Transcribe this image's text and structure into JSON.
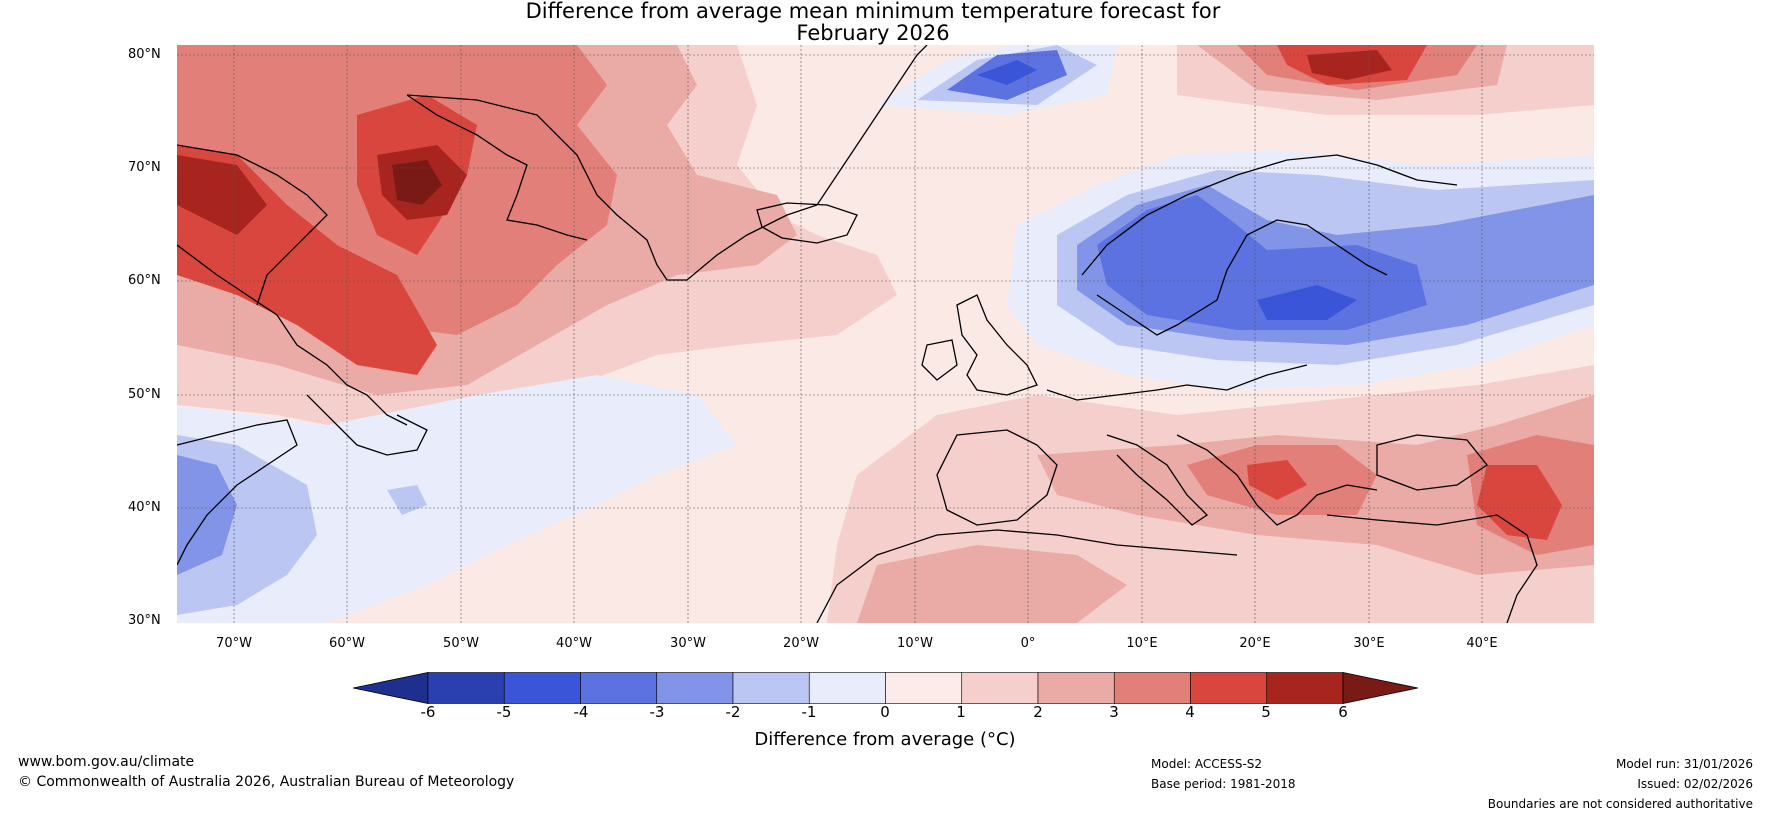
{
  "title": {
    "line1": "Difference from average mean minimum temperature forecast for",
    "line2": "February 2026"
  },
  "map": {
    "latitude_labels": [
      "80°N",
      "70°N",
      "60°N",
      "50°N",
      "40°N",
      "30°N"
    ],
    "longitude_labels": [
      "70°W",
      "60°W",
      "50°W",
      "40°W",
      "30°W",
      "20°W",
      "10°W",
      "0°",
      "10°E",
      "20°E",
      "30°E",
      "40°E"
    ],
    "region": "North Atlantic, Greenland and Europe"
  },
  "colorbar": {
    "ticks": [
      "-6",
      "-5",
      "-4",
      "-3",
      "-2",
      "-1",
      "0",
      "1",
      "2",
      "3",
      "4",
      "5",
      "6"
    ],
    "label": "Difference from average (°C)",
    "colors": [
      "#1f2f8f",
      "#2a3fb0",
      "#3a55d8",
      "#5b72e0",
      "#8194e8",
      "#bcc6f2",
      "#e8ecfb",
      "#fcebe8",
      "#f4cfcb",
      "#eaaaa6",
      "#e27f79",
      "#d8463e",
      "#a8251f",
      "#7a1a16"
    ]
  },
  "footer": {
    "website": "www.bom.gov.au/climate",
    "copyright": "© Commonwealth of Australia 2026, Australian Bureau of Meteorology",
    "model": "Model: ACCESS-S2",
    "base_period": "Base period: 1981-2018",
    "model_run": "Model run: 31/01/2026",
    "issued": "Issued: 02/02/2026",
    "disclaimer": "Boundaries are not considered authoritative"
  }
}
